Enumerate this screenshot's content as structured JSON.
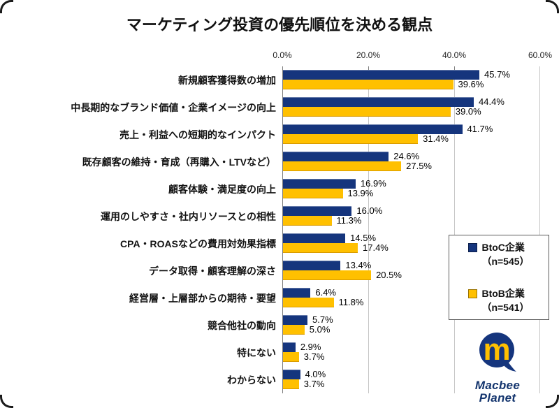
{
  "title": "マーケティング投資の優先順位を決める観点",
  "axis": {
    "ticks": [
      "0.0%",
      "20.0%",
      "40.0%",
      "60.0%"
    ]
  },
  "chart_data": {
    "type": "bar",
    "orientation": "horizontal",
    "title": "マーケティング投資の優先順位を決める観点",
    "xlabel": "",
    "ylabel": "",
    "xlim": [
      0,
      60
    ],
    "grid": true,
    "legend_position": "right-overlay",
    "value_suffix": "%",
    "categories": [
      "新規顧客獲得数の増加",
      "中長期的なブランド価値・企業イメージの向上",
      "売上・利益への短期的なインパクト",
      "既存顧客の維持・育成（再購入・LTVなど）",
      "顧客体験・満足度の向上",
      "運用のしやすさ・社内リソースとの相性",
      "CPA・ROASなどの費用対効果指標",
      "データ取得・顧客理解の深さ",
      "経営層・上層部からの期待・要望",
      "競合他社の動向",
      "特にない",
      "わからない"
    ],
    "series": [
      {
        "name": "BtoC企業",
        "n_label": "（n=545）",
        "color": "#15357d",
        "values": [
          45.7,
          44.4,
          41.7,
          24.6,
          16.9,
          16.0,
          14.5,
          13.4,
          6.4,
          5.7,
          2.9,
          4.0
        ]
      },
      {
        "name": "BtoB企業",
        "n_label": "（n=541）",
        "color": "#ffc000",
        "values": [
          39.6,
          39.0,
          31.4,
          27.5,
          13.9,
          11.3,
          17.4,
          20.5,
          11.8,
          5.0,
          3.7,
          3.7
        ]
      }
    ]
  },
  "legend": {
    "items": [
      {
        "label": "BtoC企業",
        "sub": "（n=545）",
        "color": "#15357d"
      },
      {
        "label": "BtoB企業",
        "sub": "（n=541）",
        "color": "#ffc000"
      }
    ]
  },
  "logo": {
    "line1": "Macbee",
    "line2": "Planet",
    "circle_color": "#15357d",
    "m_color": "#ffc000"
  }
}
